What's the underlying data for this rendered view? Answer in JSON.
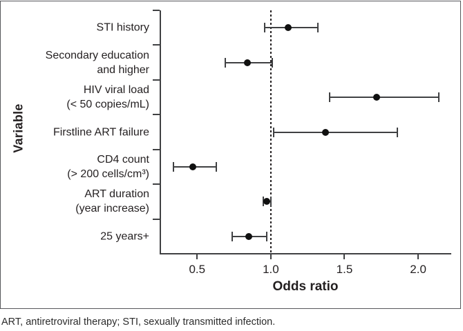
{
  "footnote": "ART, antiretroviral therapy; STI, sexually transmitted infection.",
  "colors": {
    "text": "#231f20",
    "line": "#3f4042",
    "dot": "#101010",
    "border": "#55565a"
  },
  "chart_data": {
    "type": "scatter",
    "subtype": "forest-plot",
    "title": "",
    "xlabel": "Odds ratio",
    "ylabel": "Variable",
    "xlim": [
      0.25,
      2.22
    ],
    "x_tick_values": [
      0.5,
      1.0,
      1.5,
      2.0
    ],
    "x_ticks": [
      "0.5",
      "1.0",
      "1.5",
      "2.0"
    ],
    "reference_line_x": 1.0,
    "grid": false,
    "legend": "none",
    "points": [
      {
        "label": "STI history",
        "odds_ratio": 1.12,
        "ci_low": 0.96,
        "ci_high": 1.32
      },
      {
        "label": "Secondary education\nand higher",
        "odds_ratio": 0.84,
        "ci_low": 0.69,
        "ci_high": 1.01
      },
      {
        "label": "HIV viral load\n(< 50 copies/mL)",
        "odds_ratio": 1.72,
        "ci_low": 1.4,
        "ci_high": 2.14
      },
      {
        "label": "Firstline ART failure",
        "odds_ratio": 1.37,
        "ci_low": 1.02,
        "ci_high": 1.86
      },
      {
        "label": "CD4 count\n(> 200 cells/cm³)",
        "odds_ratio": 0.47,
        "ci_low": 0.34,
        "ci_high": 0.63
      },
      {
        "label": "ART duration\n(year increase)",
        "odds_ratio": 0.97,
        "ci_low": 0.95,
        "ci_high": 1.0
      },
      {
        "label": "25 years+",
        "odds_ratio": 0.85,
        "ci_low": 0.74,
        "ci_high": 0.97
      }
    ]
  }
}
